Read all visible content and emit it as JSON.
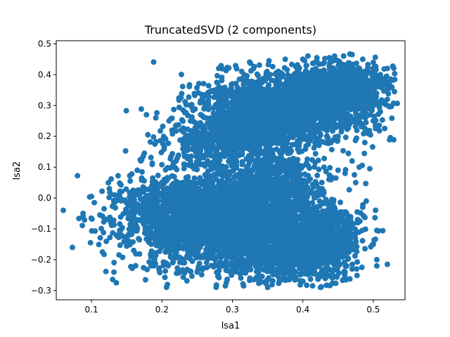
{
  "chart_data": {
    "type": "scatter",
    "title": "TruncatedSVD (2 components)",
    "xlabel": "lsa1",
    "ylabel": "lsa2",
    "xlim": [
      0.05,
      0.545
    ],
    "ylim": [
      -0.33,
      0.51
    ],
    "x_ticks": [
      0.1,
      0.2,
      0.3,
      0.4,
      0.5
    ],
    "y_ticks": [
      -0.3,
      -0.2,
      -0.1,
      0.0,
      0.1,
      0.2,
      0.3,
      0.4,
      0.5
    ],
    "x_tick_labels": [
      "0.1",
      "0.2",
      "0.3",
      "0.4",
      "0.5"
    ],
    "y_tick_labels": [
      "−0.3",
      "−0.2",
      "−0.1",
      "0.0",
      "0.1",
      "0.2",
      "0.3",
      "0.4",
      "0.5"
    ],
    "marker_color": "#1f77b4",
    "grid": false,
    "legend": "none",
    "points": [
      {
        "x": 0.06,
        "y": -0.04
      },
      {
        "x": 0.088,
        "y": -0.05
      },
      {
        "x": 0.088,
        "y": -0.06
      },
      {
        "x": 0.1,
        "y": 0.005
      },
      {
        "x": 0.104,
        "y": -0.015
      },
      {
        "x": 0.115,
        "y": 0.022
      },
      {
        "x": 0.112,
        "y": -0.055
      },
      {
        "x": 0.126,
        "y": 0.018
      },
      {
        "x": 0.178,
        "y": 0.27
      },
      {
        "x": 0.18,
        "y": 0.205
      },
      {
        "x": 0.188,
        "y": 0.198
      },
      {
        "x": 0.175,
        "y": 0.145
      },
      {
        "x": 0.2,
        "y": 0.108
      },
      {
        "x": 0.14,
        "y": -0.105
      },
      {
        "x": 0.15,
        "y": -0.125
      },
      {
        "x": 0.16,
        "y": -0.17
      },
      {
        "x": 0.185,
        "y": -0.15
      },
      {
        "x": 0.23,
        "y": -0.21
      },
      {
        "x": 0.25,
        "y": -0.24
      },
      {
        "x": 0.29,
        "y": -0.285
      },
      {
        "x": 0.33,
        "y": -0.265
      },
      {
        "x": 0.37,
        "y": -0.265
      },
      {
        "x": 0.4,
        "y": -0.27
      },
      {
        "x": 0.425,
        "y": -0.29
      },
      {
        "x": 0.46,
        "y": -0.24
      },
      {
        "x": 0.47,
        "y": -0.23
      },
      {
        "x": 0.505,
        "y": -0.22
      },
      {
        "x": 0.505,
        "y": -0.2
      },
      {
        "x": 0.505,
        "y": -0.105
      },
      {
        "x": 0.5,
        "y": -0.15
      },
      {
        "x": 0.52,
        "y": -0.215
      },
      {
        "x": 0.478,
        "y": -0.08
      },
      {
        "x": 0.485,
        "y": -0.03
      },
      {
        "x": 0.49,
        "y": -0.01
      },
      {
        "x": 0.475,
        "y": 0.05
      },
      {
        "x": 0.48,
        "y": 0.1
      },
      {
        "x": 0.495,
        "y": 0.095
      },
      {
        "x": 0.47,
        "y": 0.12
      },
      {
        "x": 0.488,
        "y": 0.18
      },
      {
        "x": 0.5,
        "y": 0.25
      },
      {
        "x": 0.51,
        "y": 0.28
      },
      {
        "x": 0.52,
        "y": 0.32
      },
      {
        "x": 0.53,
        "y": 0.345
      },
      {
        "x": 0.525,
        "y": 0.385
      },
      {
        "x": 0.52,
        "y": 0.42
      },
      {
        "x": 0.51,
        "y": 0.4
      },
      {
        "x": 0.5,
        "y": 0.44
      },
      {
        "x": 0.485,
        "y": 0.45
      },
      {
        "x": 0.47,
        "y": 0.465
      },
      {
        "x": 0.445,
        "y": 0.46
      },
      {
        "x": 0.42,
        "y": 0.455
      },
      {
        "x": 0.4,
        "y": 0.45
      },
      {
        "x": 0.375,
        "y": 0.45
      },
      {
        "x": 0.352,
        "y": 0.445
      },
      {
        "x": 0.33,
        "y": 0.42
      },
      {
        "x": 0.31,
        "y": 0.385
      },
      {
        "x": 0.3,
        "y": 0.37
      },
      {
        "x": 0.285,
        "y": 0.35
      },
      {
        "x": 0.255,
        "y": 0.315
      },
      {
        "x": 0.23,
        "y": 0.285
      },
      {
        "x": 0.21,
        "y": 0.25
      },
      {
        "x": 0.44,
        "y": 0.18
      },
      {
        "x": 0.45,
        "y": 0.2
      },
      {
        "x": 0.43,
        "y": 0.1
      },
      {
        "x": 0.45,
        "y": 0.09
      },
      {
        "x": 0.46,
        "y": 0.08
      },
      {
        "x": 0.35,
        "y": -0.29
      },
      {
        "x": 0.28,
        "y": -0.25
      },
      {
        "x": 0.265,
        "y": -0.18
      },
      {
        "x": 0.205,
        "y": -0.175
      },
      {
        "x": 0.155,
        "y": -0.085
      },
      {
        "x": 0.122,
        "y": -0.07
      },
      {
        "x": 0.118,
        "y": -0.035
      },
      {
        "x": 0.125,
        "y": 0.002
      },
      {
        "x": 0.14,
        "y": 0.048
      },
      {
        "x": 0.155,
        "y": 0.055
      },
      {
        "x": 0.165,
        "y": 0.09
      },
      {
        "x": 0.17,
        "y": 0.12
      },
      {
        "x": 0.19,
        "y": 0.175
      },
      {
        "x": 0.215,
        "y": 0.208
      },
      {
        "x": 0.23,
        "y": 0.175
      }
    ],
    "clusters": [
      {
        "cx": 0.38,
        "cy": 0.29,
        "sx": 0.06,
        "sy": 0.06,
        "rot": -0.55,
        "n": 1600
      },
      {
        "cx": 0.45,
        "cy": 0.36,
        "sx": 0.035,
        "sy": 0.045,
        "rot": -0.3,
        "n": 700
      },
      {
        "cx": 0.3,
        "cy": 0.2,
        "sx": 0.04,
        "sy": 0.06,
        "rot": -0.4,
        "n": 800
      },
      {
        "cx": 0.29,
        "cy": -0.09,
        "sx": 0.065,
        "sy": 0.075,
        "rot": 0.0,
        "n": 2000
      },
      {
        "cx": 0.38,
        "cy": -0.15,
        "sx": 0.045,
        "sy": 0.06,
        "rot": 0.0,
        "n": 1000
      },
      {
        "cx": 0.22,
        "cy": -0.05,
        "sx": 0.04,
        "sy": 0.055,
        "rot": 0.0,
        "n": 700
      },
      {
        "cx": 0.36,
        "cy": 0.04,
        "sx": 0.04,
        "sy": 0.06,
        "rot": 0.0,
        "n": 700
      },
      {
        "cx": 0.44,
        "cy": -0.14,
        "sx": 0.02,
        "sy": 0.05,
        "rot": 0.0,
        "n": 300
      }
    ]
  }
}
